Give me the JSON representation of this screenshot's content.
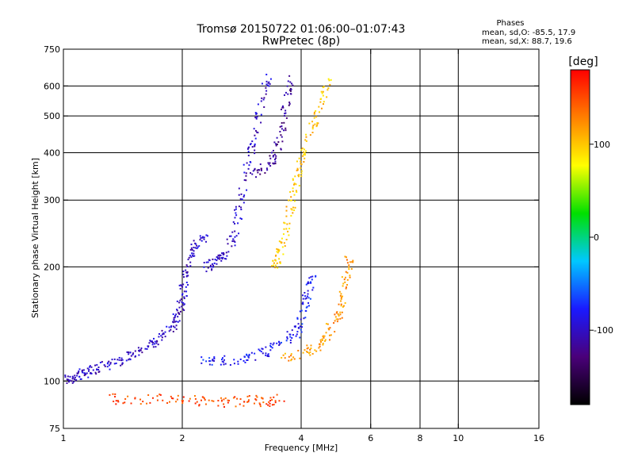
{
  "chart_data": {
    "type": "scatter",
    "title": "Tromsø 20150722 01:06:00–01:07:43",
    "subtitle": "RwPretec (8p)",
    "xlabel": "Frequency [MHz]",
    "ylabel": "Stationary phase Virtual Height [km]",
    "x_scale": "log",
    "y_scale": "log",
    "xlim": [
      1,
      16
    ],
    "ylim": [
      75,
      750
    ],
    "x_ticks": [
      1,
      2,
      4,
      6,
      8,
      10,
      16
    ],
    "y_ticks": [
      75,
      100,
      200,
      300,
      400,
      500,
      600,
      750
    ],
    "grid_x": [
      2,
      4,
      6,
      8,
      10
    ],
    "grid_y": [
      100,
      200,
      300,
      400,
      500,
      600
    ],
    "grid": true,
    "stats": {
      "heading": "Phases",
      "line1": "mean, sd,O: -85.5, 17.9",
      "line2": "mean, sd,X: 88.7, 19.6"
    },
    "colorbar": {
      "title": "[deg]",
      "range": [
        -180,
        180
      ],
      "ticks": [
        100,
        0,
        -100
      ],
      "colormap": [
        "#000000",
        "#4a007a",
        "#1a1aff",
        "#00c8ff",
        "#00e000",
        "#ffff00",
        "#ff8000",
        "#ff0000"
      ]
    },
    "series": [
      {
        "mode": "O",
        "phase_deg": -100,
        "points": [
          [
            1.0,
            100
          ],
          [
            1.05,
            102
          ],
          [
            1.1,
            104
          ],
          [
            1.15,
            106
          ],
          [
            1.2,
            108
          ],
          [
            1.3,
            110
          ],
          [
            1.4,
            113
          ],
          [
            1.5,
            117
          ],
          [
            1.6,
            121
          ],
          [
            1.7,
            126
          ],
          [
            1.8,
            132
          ],
          [
            1.9,
            140
          ],
          [
            1.95,
            150
          ],
          [
            2.0,
            160
          ],
          [
            2.02,
            175
          ],
          [
            2.05,
            195
          ],
          [
            2.1,
            215
          ],
          [
            2.2,
            230
          ],
          [
            2.3,
            240
          ]
        ]
      },
      {
        "mode": "O",
        "phase_deg": -100,
        "points": [
          [
            2.3,
            200
          ],
          [
            2.4,
            205
          ],
          [
            2.5,
            210
          ],
          [
            2.6,
            220
          ],
          [
            2.7,
            245
          ],
          [
            2.8,
            290
          ],
          [
            2.9,
            350
          ],
          [
            3.0,
            410
          ],
          [
            3.1,
            480
          ],
          [
            3.2,
            560
          ],
          [
            3.3,
            640
          ]
        ]
      },
      {
        "mode": "O",
        "phase_deg": -120,
        "points": [
          [
            3.0,
            350
          ],
          [
            3.2,
            360
          ],
          [
            3.4,
            380
          ],
          [
            3.5,
            420
          ],
          [
            3.6,
            480
          ],
          [
            3.7,
            560
          ],
          [
            3.8,
            630
          ]
        ]
      },
      {
        "mode": "X",
        "phase_deg": 100,
        "points": [
          [
            3.4,
            200
          ],
          [
            3.5,
            210
          ],
          [
            3.6,
            230
          ],
          [
            3.7,
            260
          ],
          [
            3.8,
            300
          ],
          [
            3.9,
            340
          ],
          [
            4.0,
            380
          ],
          [
            4.1,
            420
          ],
          [
            4.3,
            480
          ],
          [
            4.5,
            550
          ],
          [
            4.7,
            620
          ]
        ]
      },
      {
        "mode": "O2",
        "phase_deg": -80,
        "points": [
          [
            2.2,
            115
          ],
          [
            2.5,
            113
          ],
          [
            2.8,
            114
          ],
          [
            3.0,
            116
          ],
          [
            3.3,
            120
          ],
          [
            3.6,
            125
          ],
          [
            3.9,
            135
          ],
          [
            4.0,
            145
          ],
          [
            4.1,
            160
          ],
          [
            4.2,
            175
          ],
          [
            4.3,
            190
          ]
        ]
      },
      {
        "mode": "X2",
        "phase_deg": 120,
        "points": [
          [
            3.6,
            115
          ],
          [
            4.0,
            117
          ],
          [
            4.3,
            122
          ],
          [
            4.6,
            130
          ],
          [
            4.8,
            140
          ],
          [
            5.0,
            150
          ],
          [
            5.1,
            170
          ],
          [
            5.2,
            190
          ],
          [
            5.3,
            210
          ]
        ]
      },
      {
        "mode": "E",
        "phase_deg": 150,
        "points": [
          [
            1.3,
            90
          ],
          [
            1.5,
            89
          ],
          [
            1.8,
            90
          ],
          [
            2.1,
            89
          ],
          [
            2.4,
            88
          ],
          [
            2.7,
            88
          ],
          [
            3.0,
            89
          ],
          [
            3.3,
            88
          ],
          [
            3.6,
            90
          ]
        ]
      }
    ]
  }
}
